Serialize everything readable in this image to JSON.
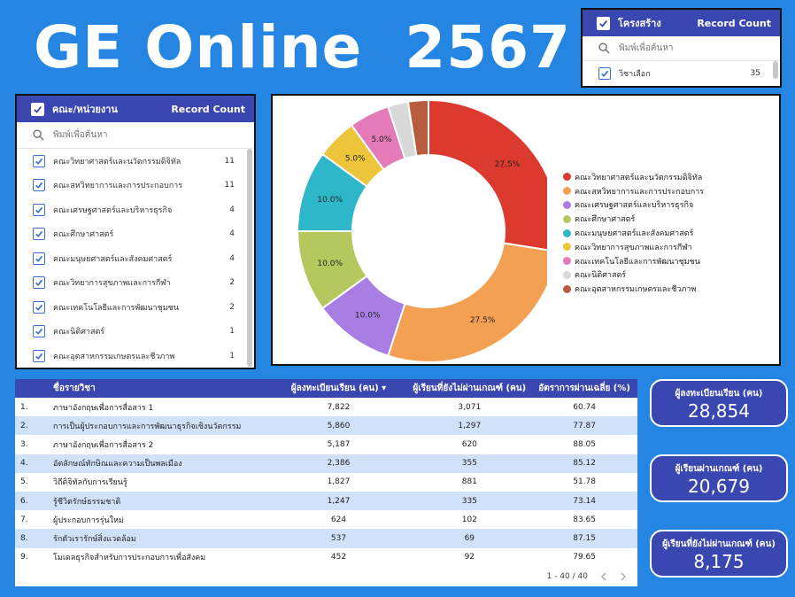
{
  "title": "GE Online  2567",
  "filter_structure": {
    "header_label": "โครงสร้าง",
    "header_count": "Record Count",
    "search_placeholder": "พิมพ์เพื่อค้นหา",
    "items": [
      {
        "label": "วิชาเลือก",
        "count": "35"
      }
    ]
  },
  "filter_faculty": {
    "header_label": "คณะ/หน่วยงาน",
    "header_count": "Record Count",
    "search_placeholder": "พิมพ์เพื่อค้นหา",
    "items": [
      {
        "label": "คณะวิทยาศาสตร์และนวัตกรรมดิจิทัล",
        "count": "11"
      },
      {
        "label": "คณะสหวิทยาการและการประกอบการ",
        "count": "11"
      },
      {
        "label": "คณะเศรษฐศาสตร์และบริหารธุรกิจ",
        "count": "4"
      },
      {
        "label": "คณะศึกษาศาสตร์",
        "count": "4"
      },
      {
        "label": "คณะมนุษยศาสตร์และสังคมศาสตร์",
        "count": "4"
      },
      {
        "label": "คณะวิทยาการสุขภาพและการกีฬา",
        "count": "2"
      },
      {
        "label": "คณะเทคโนโลยีและการพัฒนาชุมชน",
        "count": "2"
      },
      {
        "label": "คณะนิติศาสตร์",
        "count": "1"
      },
      {
        "label": "คณะอุตสาหกรรมเกษตรและชีวภาพ",
        "count": "1"
      }
    ]
  },
  "chart_data": {
    "type": "pie",
    "title": "",
    "series": [
      {
        "name": "คณะวิทยาศาสตร์และนวัตกรรมดิจิทัล",
        "value": 27.5,
        "label": "27.5%",
        "color": "#dc3a2f"
      },
      {
        "name": "คณะสหวิทยาการและการประกอบการ",
        "value": 27.5,
        "label": "27.5%",
        "color": "#f4a053"
      },
      {
        "name": "คณะเศรษฐศาสตร์และบริหารธุรกิจ",
        "value": 10.0,
        "label": "10.0%",
        "color": "#a87ee3"
      },
      {
        "name": "คณะศึกษาศาสตร์",
        "value": 10.0,
        "label": "10.0%",
        "color": "#b5c85e"
      },
      {
        "name": "คณะมนุษยศาสตร์และสังคมศาสตร์",
        "value": 10.0,
        "label": "10.0%",
        "color": "#2db7c8"
      },
      {
        "name": "คณะวิทยาการสุขภาพและการกีฬา",
        "value": 5.0,
        "label": "5.0%",
        "color": "#edc53b"
      },
      {
        "name": "คณะเทคโนโลยีและการพัฒนาชุมชน",
        "value": 5.0,
        "label": "5.0%",
        "color": "#e57ab8"
      },
      {
        "name": "คณะนิติศาสตร์",
        "value": 2.5,
        "label": "",
        "color": "#d9d9d9"
      },
      {
        "name": "คณะอุตสาหกรรมเกษตรและชีวภาพ",
        "value": 2.5,
        "label": "",
        "color": "#b85c3e"
      }
    ],
    "legend": "right"
  },
  "table": {
    "columns": [
      "ชื่อรายวิชา",
      "ผู้ลงทะเบียนเรียน (คน)",
      "ผู้เรียนที่ยังไม่ผ่านเกณฑ์ (คน)",
      "อัตราการผ่านเฉลี่ย (%)"
    ],
    "sort_indicator": "▾",
    "rows": [
      {
        "idx": "1.",
        "name": "ภาษาอังกฤษเพื่อการสื่อสาร 1",
        "enrolled": "7,822",
        "not_passed": "3,071",
        "rate": "60.74"
      },
      {
        "idx": "2.",
        "name": "การเป็นผู้ประกอบการและการพัฒนาธุรกิจเชิงนวัตกรรม",
        "enrolled": "5,860",
        "not_passed": "1,297",
        "rate": "77.87"
      },
      {
        "idx": "3.",
        "name": "ภาษาอังกฤษเพื่อการสื่อสาร 2",
        "enrolled": "5,187",
        "not_passed": "620",
        "rate": "88.05"
      },
      {
        "idx": "4.",
        "name": "อัตลักษณ์ทักษิณและความเป็นพลเมือง",
        "enrolled": "2,386",
        "not_passed": "355",
        "rate": "85.12"
      },
      {
        "idx": "5.",
        "name": "วิถีดิจิทัลกับการเรียนรู้",
        "enrolled": "1,827",
        "not_passed": "881",
        "rate": "51.78"
      },
      {
        "idx": "6.",
        "name": "รู้ชีวิตรักษ์ธรรมชาติ",
        "enrolled": "1,247",
        "not_passed": "335",
        "rate": "73.14"
      },
      {
        "idx": "7.",
        "name": "ผู้ประกอบการรุ่นใหม่",
        "enrolled": "624",
        "not_passed": "102",
        "rate": "83.65"
      },
      {
        "idx": "8.",
        "name": "รักตัวเรารักษ์สิ่งแวดล้อม",
        "enrolled": "537",
        "not_passed": "69",
        "rate": "87.15"
      },
      {
        "idx": "9.",
        "name": "โมเดลธุรกิจสำหรับการประกอบการเพื่อสังคม",
        "enrolled": "452",
        "not_passed": "92",
        "rate": "79.65"
      }
    ],
    "pagination": "1 - 40 / 40"
  },
  "kpis": [
    {
      "label": "ผู้ลงทะเบียนเรียน (คน)",
      "value": "28,854"
    },
    {
      "label": "ผู้เรียนผ่านเกณฑ์ (คน)",
      "value": "20,679"
    },
    {
      "label": "ผู้เรียนที่ยังไม่ผ่านเกณฑ์ (คน)",
      "value": "8,175"
    }
  ]
}
